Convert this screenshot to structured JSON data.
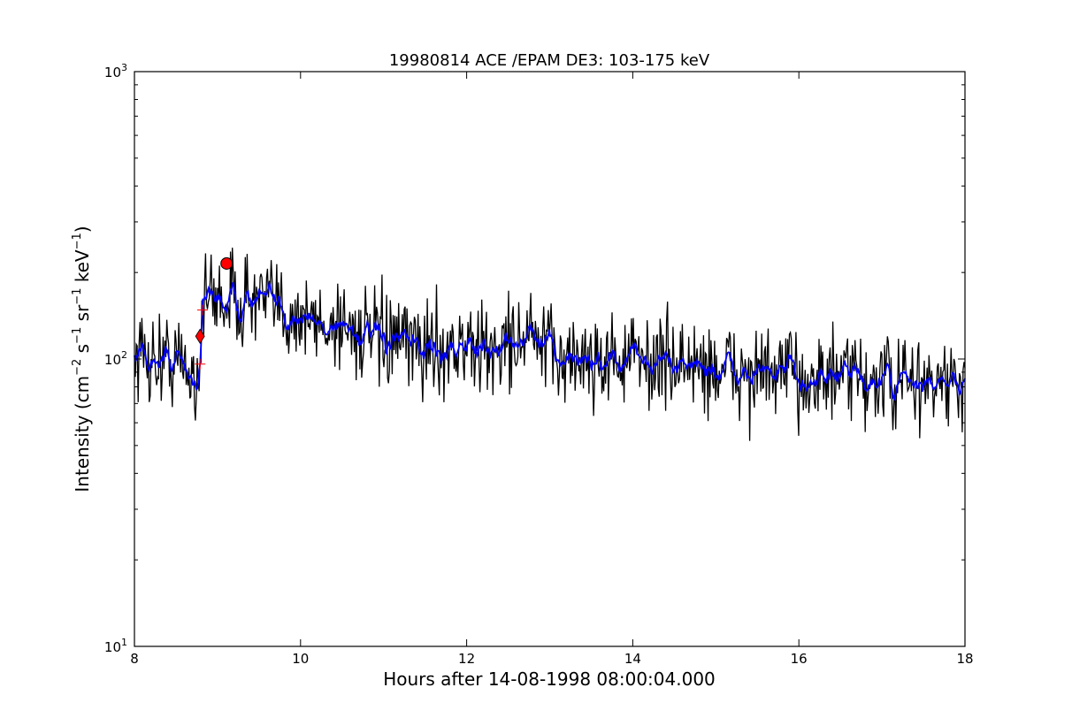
{
  "chart_data": {
    "type": "line",
    "title": "19980814 ACE /EPAM DE3: 103-175 keV",
    "xlabel": "Hours after 14-08-1998 08:00:04.000",
    "ylabel": {
      "prefix": "Intensity (cm",
      "sup1": "−2",
      "mid1": " s",
      "sup2": "−1",
      "mid2": " sr",
      "sup3": "−1",
      "mid3": " keV",
      "sup4": "−1",
      "suffix": ")"
    },
    "xlim": [
      8,
      18
    ],
    "ylim": [
      10,
      1000
    ],
    "yscale": "log",
    "grid": false,
    "x_ticks": [
      8,
      10,
      12,
      14,
      16,
      18
    ],
    "x_tick_labels": [
      "8",
      "10",
      "12",
      "14",
      "16",
      "18"
    ],
    "y_ticks": [
      {
        "base": "10",
        "exp": "1",
        "value": 10
      },
      {
        "base": "10",
        "exp": "2",
        "value": 100
      },
      {
        "base": "10",
        "exp": "3",
        "value": 1000
      }
    ],
    "series": [
      {
        "color": "#000000",
        "style": "raw",
        "x": [
          8.0,
          8.25,
          8.5,
          8.75,
          8.79,
          8.82,
          9.0,
          9.25,
          9.5,
          9.75,
          10.0,
          10.25,
          10.5,
          10.75,
          11.0,
          11.25,
          11.5,
          11.75,
          12.0,
          12.25,
          12.5,
          12.75,
          13.0,
          13.25,
          13.5,
          13.75,
          14.0,
          14.25,
          14.5,
          14.75,
          15.0,
          15.25,
          15.5,
          15.75,
          16.0,
          16.25,
          16.5,
          16.75,
          17.0,
          17.25,
          17.5,
          17.75,
          18.0
        ],
        "y": [
          105,
          100,
          100,
          85,
          100,
          160,
          165,
          160,
          160,
          150,
          140,
          130,
          135,
          120,
          115,
          112,
          110,
          110,
          110,
          105,
          115,
          120,
          105,
          100,
          100,
          100,
          100,
          98,
          97,
          95,
          92,
          90,
          88,
          88,
          88,
          86,
          85,
          85,
          83,
          82,
          82,
          82,
          80
        ],
        "noise": 0.27
      },
      {
        "color": "#0000ff",
        "style": "smoothed",
        "x": [
          8.0,
          8.25,
          8.5,
          8.75,
          8.79,
          8.82,
          9.0,
          9.25,
          9.5,
          9.75,
          10.0,
          10.25,
          10.5,
          10.75,
          11.0,
          11.25,
          11.5,
          11.75,
          12.0,
          12.25,
          12.5,
          12.75,
          13.0,
          13.25,
          13.5,
          13.75,
          14.0,
          14.25,
          14.5,
          14.75,
          15.0,
          15.25,
          15.5,
          15.75,
          16.0,
          16.25,
          16.5,
          16.75,
          17.0,
          17.25,
          17.5,
          17.75,
          18.0
        ],
        "y": [
          105,
          100,
          100,
          85,
          100,
          160,
          165,
          160,
          160,
          150,
          140,
          130,
          135,
          120,
          115,
          112,
          110,
          110,
          110,
          105,
          115,
          120,
          105,
          100,
          100,
          100,
          100,
          98,
          97,
          95,
          92,
          90,
          88,
          88,
          88,
          86,
          85,
          85,
          83,
          82,
          82,
          82,
          80
        ],
        "noise": 0.1
      }
    ],
    "markers": [
      {
        "type": "circle",
        "x": 9.11,
        "y": 215,
        "color": "#ff0000"
      },
      {
        "type": "diamond",
        "x": 8.79,
        "y": 120,
        "color": "#ff0000"
      },
      {
        "type": "plus",
        "x": 8.82,
        "y": 148,
        "color": "#ff0000"
      },
      {
        "type": "plus",
        "x": 8.79,
        "y": 96,
        "color": "#ff0000"
      }
    ]
  }
}
